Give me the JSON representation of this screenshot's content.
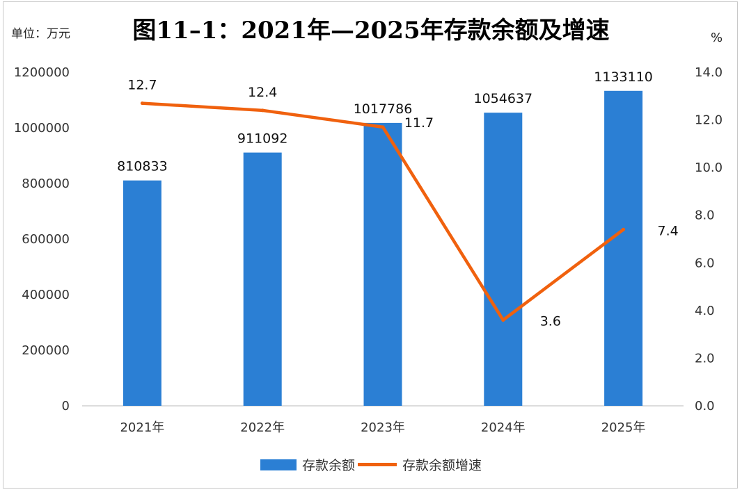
{
  "title": "图11–1：2021年—2025年存款余额及增速",
  "unit_left": "单位：万元",
  "unit_right": "%",
  "colors": {
    "bar": "#2b7fd4",
    "line": "#f0610e"
  },
  "chart_data": {
    "type": "bar",
    "categories": [
      "2021年",
      "2022年",
      "2023年",
      "2024年",
      "2025年"
    ],
    "series": [
      {
        "name": "存款余额",
        "type": "bar",
        "axis": "left",
        "values": [
          810833,
          911092,
          1017786,
          1054637,
          1133110
        ]
      },
      {
        "name": "存款余额增速",
        "type": "line",
        "axis": "right",
        "values": [
          12.7,
          12.4,
          11.7,
          3.6,
          7.4
        ]
      }
    ],
    "y_left": {
      "min": 0,
      "max": 1200000,
      "ticks": [
        "0",
        "200000",
        "400000",
        "600000",
        "800000",
        "1000000",
        "1200000"
      ]
    },
    "y_right": {
      "min": 0,
      "max": 14,
      "ticks": [
        "0.0",
        "2.0",
        "4.0",
        "6.0",
        "8.0",
        "10.0",
        "12.0",
        "14.0"
      ]
    },
    "grid": false,
    "legend": "bottom"
  }
}
